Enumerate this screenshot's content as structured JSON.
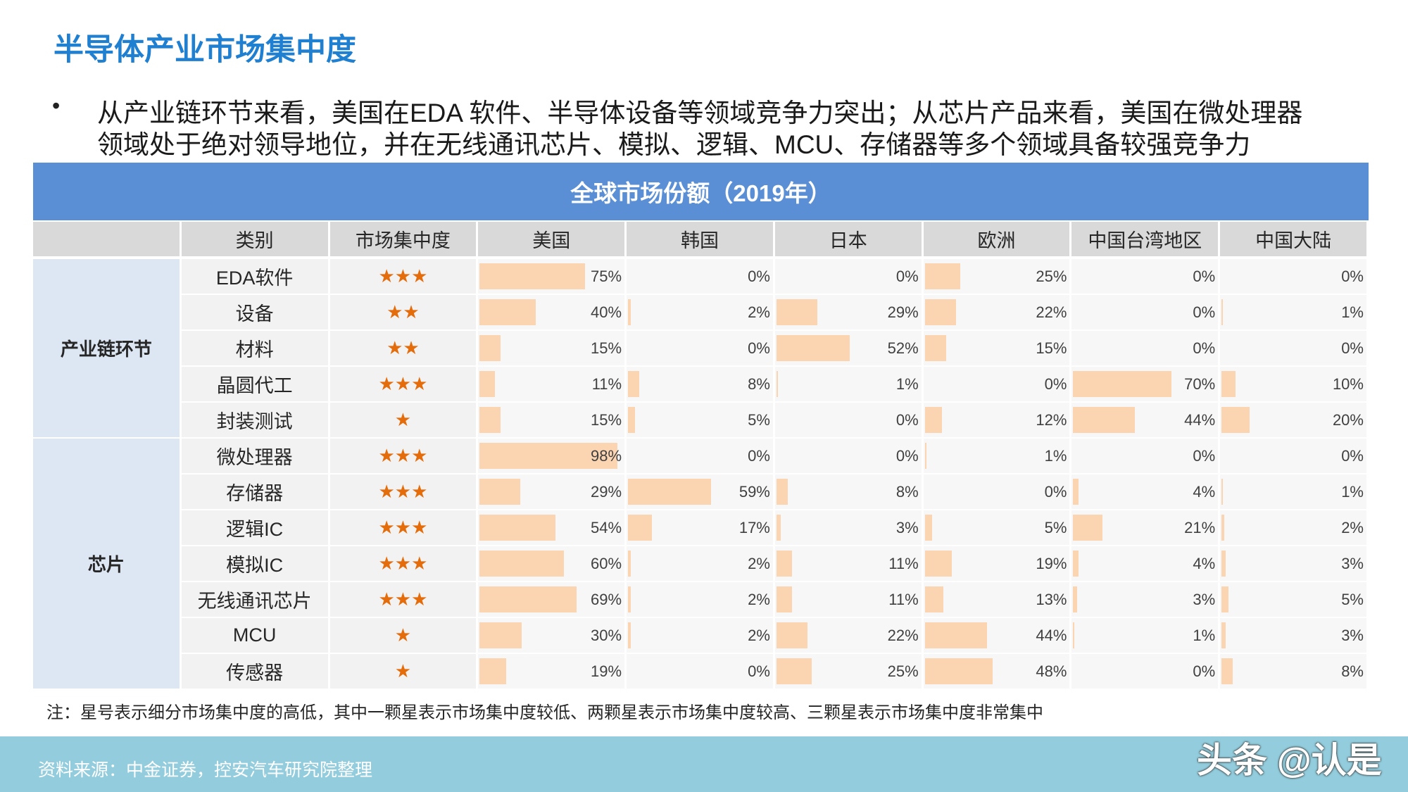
{
  "header": {
    "title": "半导体产业市场集中度",
    "bullet_lines": [
      "从产业链环节来看，美国在EDA 软件、半导体设备等领域竞争力突出；从芯片产品来看，美国在微处理器",
      "领域处于绝对领导地位，并在无线通讯芯片、模拟、逻辑、MCU、存储器等多个领域具备较强竞争力"
    ]
  },
  "table": {
    "caption": "全球市场份额（2019年）",
    "columns": [
      "类别",
      "市场集中度",
      "美国",
      "韩国",
      "日本",
      "欧洲",
      "中国台湾地区",
      "中国大陆"
    ],
    "groups": [
      {
        "label": "产业链环节",
        "rows": [
          {
            "category": "EDA软件",
            "stars": "★★★",
            "shares": [
              {
                "value": 75,
                "label": "75%"
              },
              {
                "value": 0,
                "label": "0%"
              },
              {
                "value": 0,
                "label": "0%"
              },
              {
                "value": 25,
                "label": "25%"
              },
              {
                "value": 0,
                "label": "0%"
              },
              {
                "value": 0,
                "label": "0%"
              }
            ]
          },
          {
            "category": "设备",
            "stars": "★★",
            "shares": [
              {
                "value": 40,
                "label": "40%"
              },
              {
                "value": 2,
                "label": "2%"
              },
              {
                "value": 29,
                "label": "29%"
              },
              {
                "value": 22,
                "label": "22%"
              },
              {
                "value": 0,
                "label": "0%"
              },
              {
                "value": 1,
                "label": "1%"
              }
            ]
          },
          {
            "category": "材料",
            "stars": "★★",
            "shares": [
              {
                "value": 15,
                "label": "15%"
              },
              {
                "value": 0,
                "label": "0%"
              },
              {
                "value": 52,
                "label": "52%"
              },
              {
                "value": 15,
                "label": "15%"
              },
              {
                "value": 0,
                "label": "0%"
              },
              {
                "value": 0,
                "label": "0%"
              }
            ]
          },
          {
            "category": "晶圆代工",
            "stars": "★★★",
            "shares": [
              {
                "value": 11,
                "label": "11%"
              },
              {
                "value": 8,
                "label": "8%"
              },
              {
                "value": 1,
                "label": "1%"
              },
              {
                "value": 0,
                "label": "0%"
              },
              {
                "value": 70,
                "label": "70%"
              },
              {
                "value": 10,
                "label": "10%"
              }
            ]
          },
          {
            "category": "封装测试",
            "stars": "★",
            "shares": [
              {
                "value": 15,
                "label": "15%"
              },
              {
                "value": 5,
                "label": "5%"
              },
              {
                "value": 0,
                "label": "0%"
              },
              {
                "value": 12,
                "label": "12%"
              },
              {
                "value": 44,
                "label": "44%"
              },
              {
                "value": 20,
                "label": "20%"
              }
            ]
          }
        ]
      },
      {
        "label": "芯片",
        "rows": [
          {
            "category": "微处理器",
            "stars": "★★★",
            "shares": [
              {
                "value": 98,
                "label": "98%"
              },
              {
                "value": 0,
                "label": "0%"
              },
              {
                "value": 0,
                "label": "0%"
              },
              {
                "value": 1,
                "label": "1%"
              },
              {
                "value": 0,
                "label": "0%"
              },
              {
                "value": 0,
                "label": "0%"
              }
            ]
          },
          {
            "category": "存储器",
            "stars": "★★★",
            "shares": [
              {
                "value": 29,
                "label": "29%"
              },
              {
                "value": 59,
                "label": "59%"
              },
              {
                "value": 8,
                "label": "8%"
              },
              {
                "value": 0,
                "label": "0%"
              },
              {
                "value": 4,
                "label": "4%"
              },
              {
                "value": 1,
                "label": "1%"
              }
            ]
          },
          {
            "category": "逻辑IC",
            "stars": "★★★",
            "shares": [
              {
                "value": 54,
                "label": "54%"
              },
              {
                "value": 17,
                "label": "17%"
              },
              {
                "value": 3,
                "label": "3%"
              },
              {
                "value": 5,
                "label": "5%"
              },
              {
                "value": 21,
                "label": "21%"
              },
              {
                "value": 2,
                "label": "2%"
              }
            ]
          },
          {
            "category": "模拟IC",
            "stars": "★★★",
            "shares": [
              {
                "value": 60,
                "label": "60%"
              },
              {
                "value": 2,
                "label": "2%"
              },
              {
                "value": 11,
                "label": "11%"
              },
              {
                "value": 19,
                "label": "19%"
              },
              {
                "value": 4,
                "label": "4%"
              },
              {
                "value": 3,
                "label": "3%"
              }
            ]
          },
          {
            "category": "无线通讯芯片",
            "stars": "★★★",
            "shares": [
              {
                "value": 69,
                "label": "69%"
              },
              {
                "value": 2,
                "label": "2%"
              },
              {
                "value": 11,
                "label": "11%"
              },
              {
                "value": 13,
                "label": "13%"
              },
              {
                "value": 3,
                "label": "3%"
              },
              {
                "value": 5,
                "label": "5%"
              }
            ]
          },
          {
            "category": "MCU",
            "stars": "★",
            "shares": [
              {
                "value": 30,
                "label": "30%"
              },
              {
                "value": 2,
                "label": "2%"
              },
              {
                "value": 22,
                "label": "22%"
              },
              {
                "value": 44,
                "label": "44%"
              },
              {
                "value": 1,
                "label": "1%"
              },
              {
                "value": 3,
                "label": "3%"
              }
            ]
          },
          {
            "category": "传感器",
            "stars": "★",
            "shares": [
              {
                "value": 19,
                "label": "19%"
              },
              {
                "value": 0,
                "label": "0%"
              },
              {
                "value": 25,
                "label": "25%"
              },
              {
                "value": 48,
                "label": "48%"
              },
              {
                "value": 0,
                "label": "0%"
              },
              {
                "value": 8,
                "label": "8%"
              }
            ]
          }
        ]
      }
    ],
    "note": "注：星号表示细分市场集中度的高低，其中一颗星表示市场集中度较低、两颗星表示市场集中度较高、三颗星表示市场集中度非常集中"
  },
  "footer": {
    "source": "资料来源：中金证券，控安汽车研究院整理",
    "watermark": "头条 @认是"
  }
}
